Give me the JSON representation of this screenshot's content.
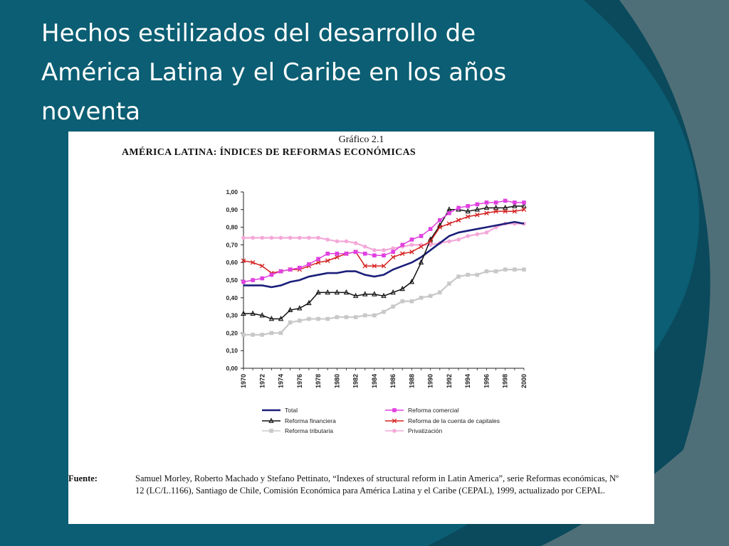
{
  "slide": {
    "title": "Hechos estilizados del desarrollo de América Latina y el Caribe en los años noventa"
  },
  "colors": {
    "background": "#0b5e73",
    "arc_dark": "#0a4a5c",
    "arc_gray": "#4f6f78",
    "total": "#1b1f7a",
    "comercial": "#e040e0",
    "financiera": "#111111",
    "capitales": "#d42020",
    "tributaria": "#c8c8c8",
    "privatizacion": "#f3a8d8"
  },
  "figure": {
    "number": "Gráfico 2.1",
    "title": "AMÉRICA LATINA: ÍNDICES DE REFORMAS ECONÓMICAS",
    "source_label": "Fuente:",
    "source_text": "Samuel Morley, Roberto Machado y Stefano Pettinato, “Indexes of structural reform in Latin America”, serie Reformas económicas, Nº 12 (LC/L.1166), Santiago de Chile, Comisión Económica para América Latina y el Caribe (CEPAL), 1999, actualizado por CEPAL."
  },
  "chart_data": {
    "type": "line",
    "x": [
      1970,
      1971,
      1972,
      1973,
      1974,
      1975,
      1976,
      1977,
      1978,
      1979,
      1980,
      1981,
      1982,
      1983,
      1984,
      1985,
      1986,
      1987,
      1988,
      1989,
      1990,
      1991,
      1992,
      1993,
      1994,
      1995,
      1996,
      1997,
      1998,
      1999,
      2000
    ],
    "x_tick_labels": [
      "1970",
      "1972",
      "1974",
      "1976",
      "1978",
      "1980",
      "1982",
      "1984",
      "1986",
      "1988",
      "1990",
      "1992",
      "1994",
      "1996",
      "1998",
      "2000"
    ],
    "y_tick_labels": [
      "0,00",
      "0,10",
      "0,20",
      "0,30",
      "0,40",
      "0,50",
      "0,60",
      "0,70",
      "0,80",
      "0,90",
      "1,00"
    ],
    "ylim": [
      0,
      1
    ],
    "grid": false,
    "legend_position": "bottom",
    "series": [
      {
        "name": "Total",
        "key": "total",
        "marker": "none",
        "values": [
          0.47,
          0.47,
          0.47,
          0.46,
          0.47,
          0.49,
          0.5,
          0.52,
          0.53,
          0.54,
          0.54,
          0.55,
          0.55,
          0.53,
          0.52,
          0.53,
          0.56,
          0.58,
          0.6,
          0.63,
          0.67,
          0.71,
          0.75,
          0.77,
          0.78,
          0.79,
          0.8,
          0.81,
          0.82,
          0.83,
          0.82
        ]
      },
      {
        "name": "Reforma comercial",
        "key": "comercial",
        "marker": "square",
        "values": [
          0.49,
          0.5,
          0.51,
          0.53,
          0.55,
          0.56,
          0.57,
          0.59,
          0.62,
          0.65,
          0.65,
          0.65,
          0.66,
          0.65,
          0.64,
          0.64,
          0.66,
          0.7,
          0.73,
          0.75,
          0.79,
          0.84,
          0.88,
          0.91,
          0.92,
          0.93,
          0.94,
          0.94,
          0.95,
          0.94,
          0.94
        ]
      },
      {
        "name": "Reforma financiera",
        "key": "financiera",
        "marker": "triangle",
        "values": [
          0.31,
          0.31,
          0.3,
          0.28,
          0.28,
          0.33,
          0.34,
          0.37,
          0.43,
          0.43,
          0.43,
          0.43,
          0.41,
          0.42,
          0.42,
          0.41,
          0.43,
          0.45,
          0.49,
          0.6,
          0.73,
          0.81,
          0.9,
          0.9,
          0.89,
          0.9,
          0.91,
          0.91,
          0.91,
          0.92,
          0.92
        ]
      },
      {
        "name": "Reforma de la cuenta de capitales",
        "key": "capitales",
        "marker": "x",
        "values": [
          0.61,
          0.6,
          0.58,
          0.54,
          0.55,
          0.56,
          0.56,
          0.58,
          0.6,
          0.61,
          0.63,
          0.65,
          0.66,
          0.58,
          0.58,
          0.58,
          0.63,
          0.65,
          0.66,
          0.69,
          0.72,
          0.8,
          0.82,
          0.84,
          0.86,
          0.87,
          0.88,
          0.89,
          0.89,
          0.89,
          0.9
        ]
      },
      {
        "name": "Reforma tributaria",
        "key": "tributaria",
        "marker": "square",
        "values": [
          0.19,
          0.19,
          0.19,
          0.2,
          0.2,
          0.26,
          0.27,
          0.28,
          0.28,
          0.28,
          0.29,
          0.29,
          0.29,
          0.3,
          0.3,
          0.32,
          0.35,
          0.38,
          0.38,
          0.4,
          0.41,
          0.43,
          0.48,
          0.52,
          0.53,
          0.53,
          0.55,
          0.55,
          0.56,
          0.56,
          0.56
        ]
      },
      {
        "name": "Privatización",
        "key": "privatizacion",
        "marker": "circle",
        "values": [
          0.74,
          0.74,
          0.74,
          0.74,
          0.74,
          0.74,
          0.74,
          0.74,
          0.74,
          0.73,
          0.72,
          0.72,
          0.71,
          0.69,
          0.67,
          0.67,
          0.68,
          0.69,
          0.7,
          0.7,
          0.7,
          0.71,
          0.72,
          0.73,
          0.75,
          0.76,
          0.77,
          0.8,
          0.82,
          0.82,
          0.82
        ]
      }
    ]
  }
}
